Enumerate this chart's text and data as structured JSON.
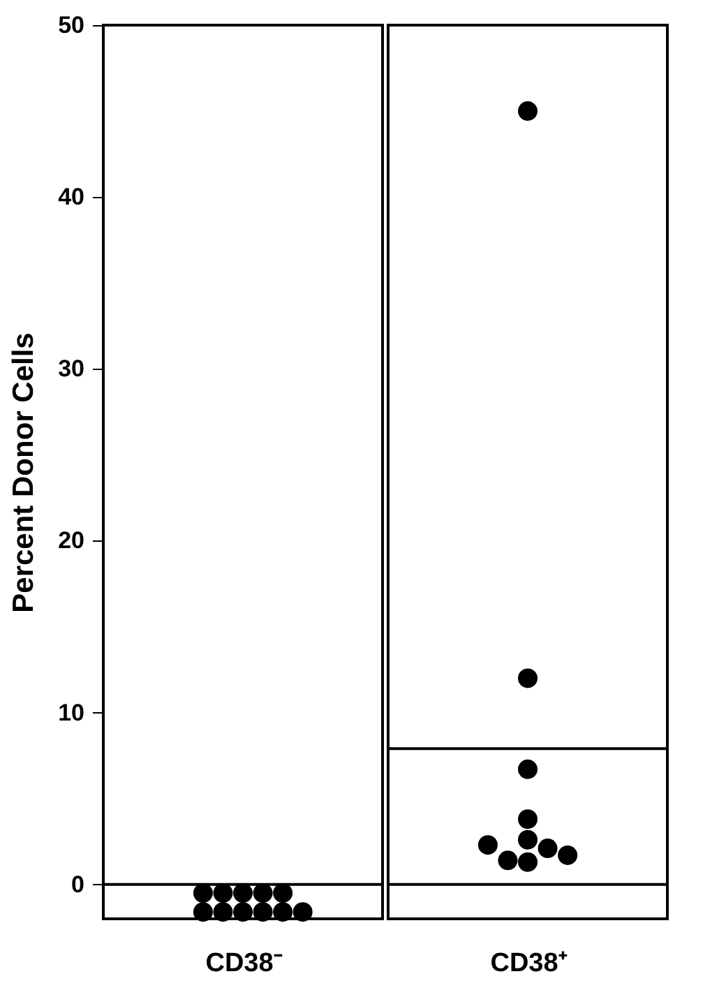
{
  "chart_data": [
    {
      "type": "scatter",
      "ylabel": "Percent Donor Cells",
      "categories": [
        "CD38⁻"
      ],
      "series": [
        {
          "color": "#000000",
          "x": [
            "CD38⁻",
            "CD38⁻",
            "CD38⁻",
            "CD38⁻",
            "CD38⁻",
            "CD38⁻",
            "CD38⁻",
            "CD38⁻",
            "CD38⁻",
            "CD38⁻",
            "CD38⁻"
          ],
          "values": [
            -0.5,
            -0.5,
            -0.5,
            -0.5,
            -0.5,
            -1.6,
            -1.6,
            -1.6,
            -1.6,
            -1.6,
            -1.6
          ]
        }
      ],
      "ylim": [
        -2,
        50
      ],
      "yticks": [
        0,
        10,
        20,
        30,
        40,
        50
      ],
      "ref_lines": [
        {
          "axis": "y",
          "value": 0,
          "color": "#000000"
        }
      ],
      "marker": "circle",
      "grid": false
    },
    {
      "type": "scatter",
      "categories": [
        "CD38⁺"
      ],
      "series": [
        {
          "color": "#000000",
          "x": [
            "CD38⁺",
            "CD38⁺",
            "CD38⁺",
            "CD38⁺",
            "CD38⁺",
            "CD38⁺",
            "CD38⁺",
            "CD38⁺",
            "CD38⁺",
            "CD38⁺"
          ],
          "values": [
            45,
            12,
            6.7,
            3.8,
            2.6,
            1.3,
            2.1,
            1.4,
            1.7,
            2.3
          ]
        }
      ],
      "ylim": [
        -2,
        50
      ],
      "yticks": [
        0,
        10,
        20,
        30,
        40,
        50
      ],
      "ref_lines": [
        {
          "axis": "y",
          "value": 0,
          "color": "#000000"
        },
        {
          "axis": "y",
          "value": 7.9,
          "color": "#000000"
        }
      ],
      "marker": "circle",
      "grid": false,
      "tick_labels": "x"
    }
  ]
}
